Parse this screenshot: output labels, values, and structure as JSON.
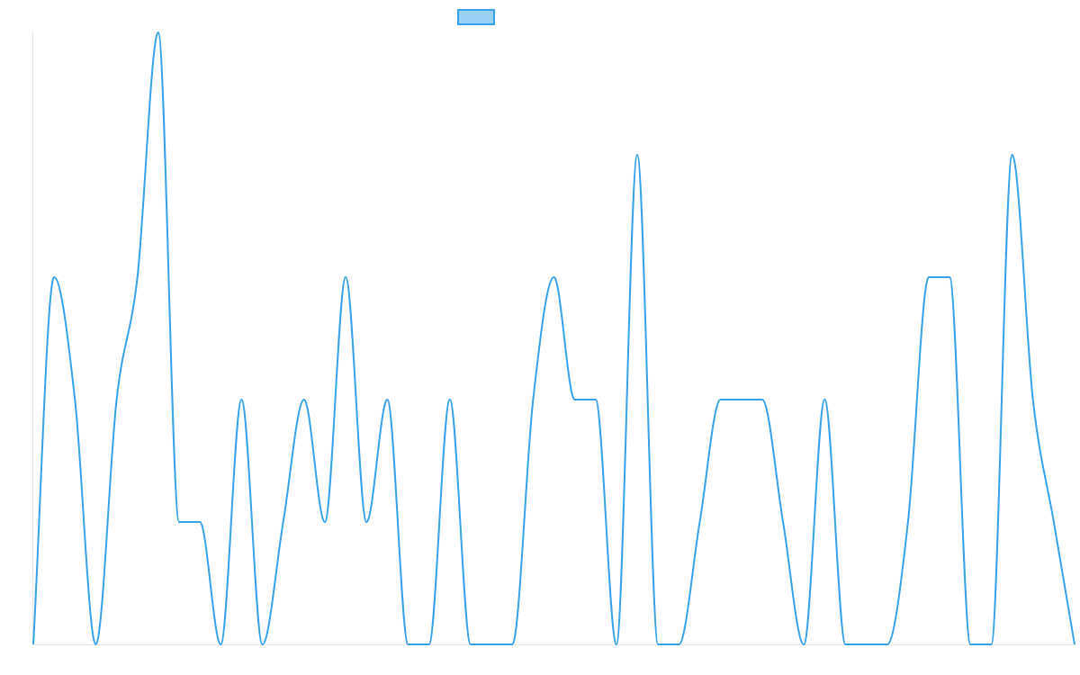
{
  "chart_data": {
    "type": "line",
    "title": "",
    "xlabel": "",
    "ylabel": "",
    "legend": {
      "position": "top",
      "series_name": ""
    },
    "grid": false,
    "ylim": [
      0,
      5
    ],
    "series": [
      {
        "color": "#36a2eb",
        "fill": "#9ad0f5",
        "values": [
          0,
          3,
          2,
          0,
          2,
          3,
          5,
          1,
          1,
          0,
          2,
          0,
          1,
          2,
          1,
          3,
          1,
          2,
          0,
          0,
          2,
          0,
          0,
          0,
          2,
          3,
          2,
          2,
          0,
          4,
          0,
          0,
          1,
          2,
          2,
          2,
          1,
          0,
          2,
          0,
          0,
          0,
          1,
          3,
          3,
          0,
          0,
          4,
          2,
          1,
          0
        ]
      }
    ]
  },
  "colors": {
    "line": "#36a2eb",
    "legend_fill": "#9ad0f5",
    "axis": "#e5e5e5"
  }
}
